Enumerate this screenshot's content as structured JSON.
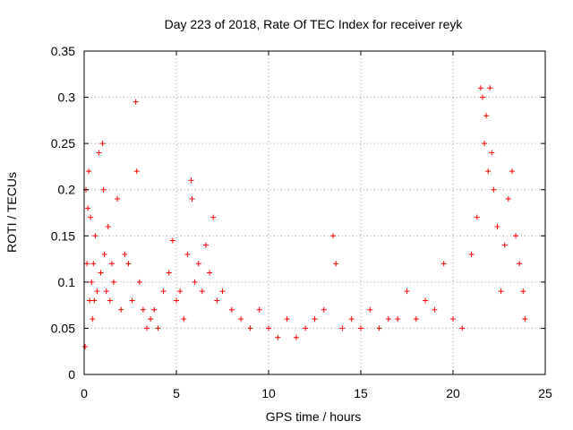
{
  "chart_data": {
    "type": "scatter",
    "title": "Day 223 of 2018, Rate Of TEC Index for receiver reyk",
    "xlabel": "GPS time / hours",
    "ylabel": "ROTI / TECUs",
    "xlim": [
      0,
      25
    ],
    "ylim": [
      0,
      0.35
    ],
    "xticks": [
      "0",
      "5",
      "10",
      "15",
      "20",
      "25"
    ],
    "yticks": [
      "0",
      "0.05",
      "0.1",
      "0.15",
      "0.2",
      "0.25",
      "0.3",
      "0.35"
    ],
    "grid": true,
    "marker": "+",
    "color": "#ff0000",
    "series": [
      {
        "x": [
          0.05,
          0.1,
          0.15,
          0.2,
          0.25,
          0.3,
          0.35,
          0.4,
          0.45,
          0.5,
          0.55,
          0.6,
          0.7,
          0.8,
          0.9,
          1.0,
          1.05,
          1.1,
          1.2,
          1.3,
          1.4,
          1.5,
          1.6,
          1.8,
          2.0,
          2.2,
          2.4,
          2.6,
          2.8,
          2.85,
          3.0,
          3.2,
          3.4,
          3.6,
          3.8,
          4.0,
          4.3,
          4.6,
          4.8,
          5.0,
          5.2,
          5.4,
          5.6,
          5.8,
          5.85,
          6.0,
          6.2,
          6.4,
          6.6,
          6.8,
          7.0,
          7.2,
          7.5,
          8.0,
          8.5,
          9.0,
          9.5,
          10.0,
          10.5,
          11.0,
          11.5,
          12.0,
          12.5,
          13.0,
          13.5,
          13.65,
          14.0,
          14.5,
          15.0,
          15.5,
          16.0,
          16.5,
          17.0,
          17.5,
          18.0,
          18.5,
          19.0,
          19.5,
          20.0,
          20.5,
          21.0,
          21.3,
          21.5,
          21.6,
          21.7,
          21.8,
          21.9,
          22.0,
          22.1,
          22.2,
          22.4,
          22.6,
          22.8,
          23.0,
          23.2,
          23.4,
          23.6,
          23.8,
          23.9
        ],
        "y": [
          0.03,
          0.2,
          0.12,
          0.18,
          0.22,
          0.08,
          0.17,
          0.1,
          0.06,
          0.12,
          0.08,
          0.15,
          0.09,
          0.24,
          0.11,
          0.25,
          0.2,
          0.13,
          0.09,
          0.16,
          0.08,
          0.12,
          0.1,
          0.19,
          0.07,
          0.13,
          0.12,
          0.08,
          0.295,
          0.22,
          0.1,
          0.07,
          0.05,
          0.06,
          0.07,
          0.05,
          0.09,
          0.11,
          0.145,
          0.08,
          0.09,
          0.06,
          0.13,
          0.21,
          0.19,
          0.1,
          0.12,
          0.09,
          0.14,
          0.11,
          0.17,
          0.08,
          0.09,
          0.07,
          0.06,
          0.05,
          0.07,
          0.05,
          0.04,
          0.06,
          0.04,
          0.05,
          0.06,
          0.07,
          0.15,
          0.12,
          0.05,
          0.06,
          0.05,
          0.07,
          0.05,
          0.06,
          0.06,
          0.09,
          0.06,
          0.08,
          0.07,
          0.12,
          0.06,
          0.05,
          0.13,
          0.17,
          0.31,
          0.3,
          0.25,
          0.28,
          0.22,
          0.31,
          0.24,
          0.2,
          0.16,
          0.09,
          0.14,
          0.19,
          0.22,
          0.15,
          0.12,
          0.09,
          0.06
        ]
      }
    ]
  }
}
